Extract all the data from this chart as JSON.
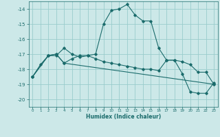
{
  "xlabel": "Humidex (Indice chaleur)",
  "background_color": "#cce8e8",
  "grid_color": "#99cccc",
  "line_color": "#1a6b6b",
  "xlim": [
    -0.5,
    23.5
  ],
  "ylim": [
    -20.5,
    -13.5
  ],
  "yticks": [
    -20,
    -19,
    -18,
    -17,
    -16,
    -15,
    -14
  ],
  "xticks": [
    0,
    1,
    2,
    3,
    4,
    5,
    6,
    7,
    8,
    9,
    10,
    11,
    12,
    13,
    14,
    15,
    16,
    17,
    18,
    19,
    20,
    21,
    22,
    23
  ],
  "line1_x": [
    0,
    1,
    2,
    3,
    4,
    5,
    6,
    7,
    8,
    9,
    10,
    11,
    12,
    13,
    14,
    15,
    16,
    17,
    18,
    19,
    20,
    21,
    22,
    23
  ],
  "line1_y": [
    -18.5,
    -17.7,
    -17.1,
    -17.1,
    -16.6,
    -17.0,
    -17.2,
    -17.1,
    -17.0,
    -15.0,
    -14.1,
    -14.0,
    -13.7,
    -14.4,
    -14.8,
    -14.8,
    -16.6,
    -17.4,
    -17.4,
    -18.3,
    -19.5,
    -19.6,
    -19.6,
    -18.9
  ],
  "line2_x": [
    0,
    2,
    3,
    4,
    5,
    6,
    7,
    8,
    9,
    10,
    11,
    12,
    13,
    14,
    15,
    16,
    17,
    18,
    19,
    20,
    21,
    22,
    23
  ],
  "line2_y": [
    -18.5,
    -17.1,
    -17.0,
    -17.6,
    -17.3,
    -17.1,
    -17.1,
    -17.3,
    -17.5,
    -17.6,
    -17.7,
    -17.8,
    -17.9,
    -18.0,
    -18.0,
    -18.1,
    -17.4,
    -17.4,
    -17.5,
    -17.7,
    -18.2,
    -18.2,
    -19.0
  ],
  "line3_x": [
    0,
    2,
    3,
    4,
    23
  ],
  "line3_y": [
    -18.5,
    -17.1,
    -17.0,
    -17.6,
    -19.0
  ]
}
